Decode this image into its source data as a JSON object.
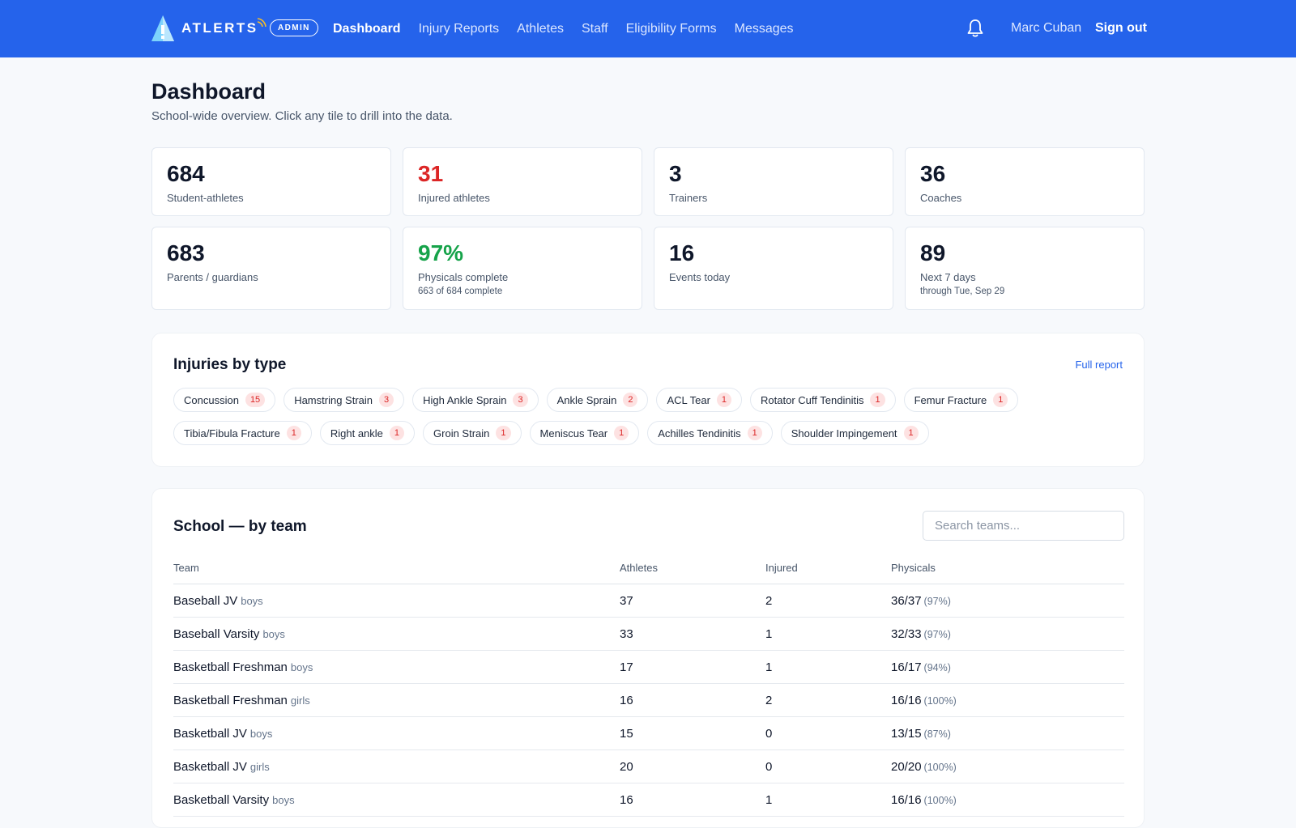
{
  "app": {
    "brand": "ATLERTS",
    "role_badge": "ADMIN",
    "nav": [
      "Dashboard",
      "Injury Reports",
      "Athletes",
      "Staff",
      "Eligibility Forms",
      "Messages"
    ],
    "active_nav": "Dashboard",
    "user_name": "Marc Cuban",
    "sign_out": "Sign out"
  },
  "page": {
    "title": "Dashboard",
    "subtitle": "School-wide overview. Click any tile to drill into the data."
  },
  "stats": [
    {
      "value": "684",
      "label": "Student-athletes",
      "sub": ""
    },
    {
      "value": "31",
      "label": "Injured athletes",
      "sub": "",
      "color": "#dc2626"
    },
    {
      "value": "3",
      "label": "Trainers",
      "sub": ""
    },
    {
      "value": "36",
      "label": "Coaches",
      "sub": ""
    },
    {
      "value": "683",
      "label": "Parents / guardians",
      "sub": ""
    },
    {
      "value": "97%",
      "label": "Physicals complete",
      "sub": "663 of 684 complete",
      "color": "#16a34a"
    },
    {
      "value": "16",
      "label": "Events today",
      "sub": ""
    },
    {
      "value": "89",
      "label": "Next 7 days",
      "sub": "through Tue, Sep 29"
    }
  ],
  "injuries": {
    "title": "Injuries by type",
    "full_report": "Full report",
    "row1": [
      {
        "name": "Concussion",
        "count": "15"
      },
      {
        "name": "Hamstring Strain",
        "count": "3"
      },
      {
        "name": "High Ankle Sprain",
        "count": "3"
      },
      {
        "name": "Ankle Sprain",
        "count": "2"
      },
      {
        "name": "ACL Tear",
        "count": "1"
      },
      {
        "name": "Rotator Cuff Tendinitis",
        "count": "1"
      },
      {
        "name": "Femur Fracture",
        "count": "1"
      }
    ],
    "row2": [
      {
        "name": "Tibia/Fibula Fracture",
        "count": "1"
      },
      {
        "name": "Right ankle",
        "count": "1"
      },
      {
        "name": "Groin Strain",
        "count": "1"
      },
      {
        "name": "Meniscus Tear",
        "count": "1"
      },
      {
        "name": "Achilles Tendinitis",
        "count": "1"
      },
      {
        "name": "Shoulder Impingement",
        "count": "1"
      }
    ]
  },
  "teams": {
    "title": "School — by team",
    "search_placeholder": "Search teams...",
    "columns": [
      "Team",
      "Athletes",
      "Injured",
      "Physicals"
    ],
    "rows": [
      {
        "name": "Baseball JV",
        "gender": "boys",
        "athletes": "37",
        "injured": "2",
        "physicals": "36/37",
        "pct": "(97%)"
      },
      {
        "name": "Baseball Varsity",
        "gender": "boys",
        "athletes": "33",
        "injured": "1",
        "physicals": "32/33",
        "pct": "(97%)"
      },
      {
        "name": "Basketball Freshman",
        "gender": "boys",
        "athletes": "17",
        "injured": "1",
        "physicals": "16/17",
        "pct": "(94%)"
      },
      {
        "name": "Basketball Freshman",
        "gender": "girls",
        "athletes": "16",
        "injured": "2",
        "physicals": "16/16",
        "pct": "(100%)"
      },
      {
        "name": "Basketball JV",
        "gender": "boys",
        "athletes": "15",
        "injured": "0",
        "physicals": "13/15",
        "pct": "(87%)"
      },
      {
        "name": "Basketball JV",
        "gender": "girls",
        "athletes": "20",
        "injured": "0",
        "physicals": "20/20",
        "pct": "(100%)"
      },
      {
        "name": "Basketball Varsity",
        "gender": "boys",
        "athletes": "16",
        "injured": "1",
        "physicals": "16/16",
        "pct": "(100%)"
      }
    ]
  }
}
